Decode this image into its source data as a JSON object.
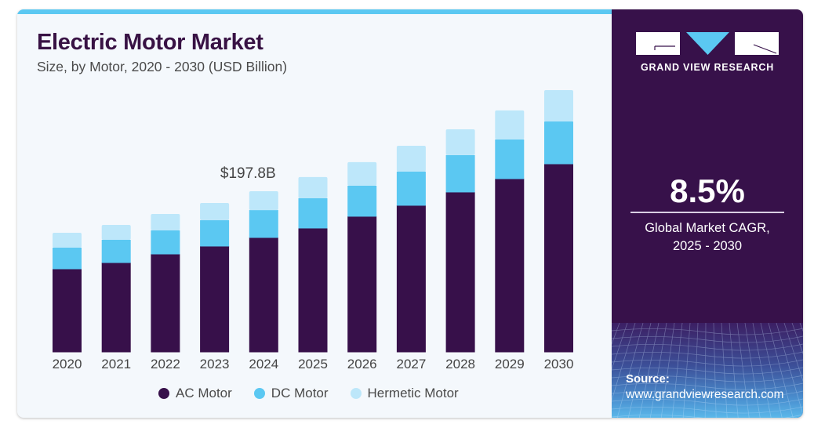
{
  "header": {
    "title": "Electric Motor Market",
    "subtitle": "Size, by Motor, 2020 - 2030 (USD Billion)"
  },
  "brand": {
    "name": "GRAND VIEW RESEARCH",
    "logo_icon": "gvr-logo-icon"
  },
  "highlight": {
    "value": "8.5%",
    "label_line1": "Global Market CAGR,",
    "label_line2": "2025 - 2030"
  },
  "source": {
    "label": "Source:",
    "url": "www.grandviewresearch.com"
  },
  "colors": {
    "ac": "#37104a",
    "dc": "#5bc8f2",
    "hermetic": "#bde7fa",
    "brand_dark": "#37114a",
    "accent": "#5bc8f2"
  },
  "chart_data": {
    "type": "bar",
    "stacked": true,
    "title": "Electric Motor Market",
    "subtitle": "Size, by Motor, 2020 - 2030 (USD Billion)",
    "xlabel": "",
    "ylabel": "USD Billion",
    "ylim": [
      0,
      340
    ],
    "grid": false,
    "legend_position": "bottom",
    "categories": [
      "2020",
      "2021",
      "2022",
      "2023",
      "2024",
      "2025",
      "2026",
      "2027",
      "2028",
      "2029",
      "2030"
    ],
    "series": [
      {
        "name": "AC Motor",
        "color": "#37104a",
        "values": [
          102.3,
          110.0,
          120.6,
          130.3,
          140.9,
          152.5,
          167.0,
          180.5,
          196.9,
          213.3,
          231.6
        ]
      },
      {
        "name": "DC Motor",
        "color": "#5bc8f2",
        "values": [
          26.1,
          28.0,
          29.0,
          31.8,
          33.7,
          36.7,
          37.6,
          41.5,
          45.4,
          48.3,
          52.1
        ]
      },
      {
        "name": "Hermetic Motor",
        "color": "#bde7fa",
        "values": [
          18.3,
          18.3,
          20.3,
          21.2,
          23.2,
          26.1,
          29.0,
          31.8,
          31.8,
          35.7,
          38.6
        ]
      }
    ],
    "annotations": [
      {
        "category": "2024",
        "text": "$197.8B"
      }
    ]
  }
}
